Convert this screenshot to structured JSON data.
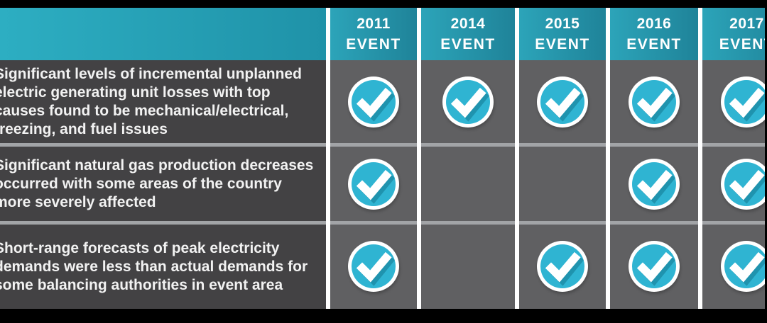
{
  "chart_data": {
    "type": "table",
    "title": "",
    "columns": [
      {
        "year": "2011",
        "label": "EVENT"
      },
      {
        "year": "2014",
        "label": "EVENT"
      },
      {
        "year": "2015",
        "label": "EVENT"
      },
      {
        "year": "2016",
        "label": "EVENT"
      },
      {
        "year": "2017",
        "label": "EVENT"
      }
    ],
    "row_labels": [
      "Significant levels of incremental unplanned\nelectric generating unit losses with top\ncauses found to be mechanical/electrical,\nfreezing, and fuel issues",
      "Significant natural gas production decreases\noccurred with some areas of the country\nmore severely affected",
      "Short-range forecasts of peak electricity\ndemands were less than actual demands for\nsome balancing authorities in event area"
    ],
    "checks": [
      [
        true,
        true,
        true,
        true,
        true
      ],
      [
        true,
        false,
        false,
        true,
        true
      ],
      [
        true,
        false,
        true,
        true,
        true
      ]
    ],
    "legend_position": "none",
    "grid": true
  },
  "icons": {
    "check": "check-circle-icon"
  },
  "colors": {
    "letterbox": "#000000",
    "header_teal_light": "#2DAEC2",
    "header_teal_dark": "#1F92A8",
    "cell_teal_light": "#2CA4B9",
    "cell_teal_dark": "#1F8399",
    "label_bg": "#434244",
    "cell_bg": "#606062",
    "hsep": "#A2A4A7",
    "vsep": "#FFFFFF",
    "text": "#F2F2F2",
    "check_fill": "#2FB4D2",
    "check_shadow": "#1F93AE",
    "check_ring": "#FFFFFF"
  }
}
